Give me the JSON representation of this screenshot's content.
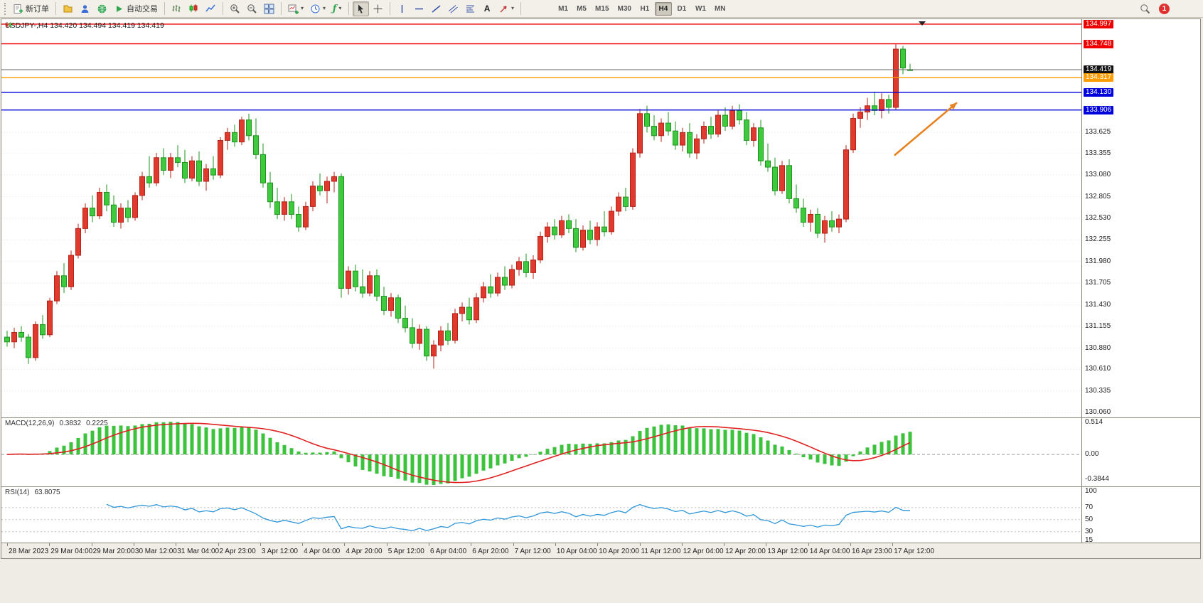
{
  "toolbar": {
    "new_order_label": "新订单",
    "autotrade_label": "自动交易",
    "text_tool_label": "A",
    "indicators_glyph": "ƒ",
    "caret_glyph": "▾",
    "timeframes": [
      "M1",
      "M5",
      "M15",
      "M30",
      "H1",
      "H4",
      "D1",
      "W1",
      "MN"
    ],
    "active_timeframe": "H4",
    "notification_count": "1"
  },
  "chart": {
    "title": "USDJPY-,H4 134.420 134.494 134.419 134.419"
  },
  "indicators": {
    "macd": {
      "name": "MACD(12,26,9)",
      "value_main": "0.3832",
      "value_signal": "0.2225",
      "scale": [
        "0.514",
        "0.00",
        "-0.3844"
      ],
      "range": [
        -0.5,
        0.57
      ],
      "histogram_color": "#3CC23C",
      "signal_color": "#E02020"
    },
    "rsi": {
      "name": "RSI(14)",
      "value": "63.8075",
      "levels": [
        "100",
        "70",
        "50",
        "30",
        "15"
      ],
      "level_lines": [
        70,
        50,
        30
      ],
      "range": [
        12,
        104
      ],
      "line_color": "#2E96D8"
    }
  },
  "chart_data": {
    "type": "candlestick",
    "symbol": "USDJPY-",
    "period": "H4",
    "current_price": "134.419",
    "price_axis": {
      "min": 130.0,
      "max": 135.06,
      "grid_step": 0.275,
      "labels": [
        "133.625",
        "133.355",
        "133.080",
        "132.805",
        "132.530",
        "132.255",
        "131.980",
        "131.705",
        "131.430",
        "131.155",
        "130.880",
        "130.610",
        "130.335",
        "130.060"
      ]
    },
    "hlines": [
      {
        "price": 134.997,
        "label": "134.997",
        "color": "#EF0000",
        "badge": "#EF0000"
      },
      {
        "price": 134.748,
        "label": "134.748",
        "color": "#EF0000",
        "badge": "#EF0000"
      },
      {
        "price": 134.419,
        "label": "134.419",
        "color": "#666666",
        "badge": "#111111",
        "current": true
      },
      {
        "price": 134.317,
        "label": "134.317",
        "color": "#FF9C00",
        "badge": "#FF9C00"
      },
      {
        "price": 134.13,
        "label": "134.130",
        "color": "#0000DD",
        "badge": "#0000DD"
      },
      {
        "price": 133.906,
        "label": "133.906",
        "color": "#0000DD",
        "badge": "#0000DD"
      }
    ],
    "colors": {
      "up": "#E0392E",
      "up_border": "#B42318",
      "down": "#3FC93F",
      "down_border": "#1E961E"
    },
    "arrow": {
      "from_bar": 124.8,
      "from_price": 133.33,
      "to_bar": 133.6,
      "to_price": 134.0,
      "color": "#E8821E"
    },
    "candles": [
      [
        131.02,
        131.1,
        130.9,
        130.96
      ],
      [
        130.96,
        131.14,
        130.88,
        131.08
      ],
      [
        131.08,
        131.16,
        130.96,
        131.02
      ],
      [
        131.02,
        131.06,
        130.68,
        130.76
      ],
      [
        130.76,
        131.22,
        130.72,
        131.18
      ],
      [
        131.18,
        131.3,
        131.0,
        131.05
      ],
      [
        131.05,
        131.52,
        131.02,
        131.48
      ],
      [
        131.48,
        131.86,
        131.44,
        131.8
      ],
      [
        131.8,
        131.96,
        131.58,
        131.66
      ],
      [
        131.66,
        132.12,
        131.62,
        132.06
      ],
      [
        132.06,
        132.46,
        132.02,
        132.4
      ],
      [
        132.4,
        132.72,
        132.34,
        132.66
      ],
      [
        132.66,
        132.82,
        132.48,
        132.56
      ],
      [
        132.56,
        132.92,
        132.52,
        132.86
      ],
      [
        132.86,
        132.96,
        132.62,
        132.7
      ],
      [
        132.7,
        132.82,
        132.42,
        132.48
      ],
      [
        132.48,
        132.72,
        132.4,
        132.66
      ],
      [
        132.66,
        132.76,
        132.48,
        132.54
      ],
      [
        132.54,
        132.86,
        132.5,
        132.82
      ],
      [
        132.82,
        133.12,
        132.76,
        133.06
      ],
      [
        133.06,
        133.32,
        132.92,
        132.98
      ],
      [
        132.98,
        133.36,
        132.94,
        133.3
      ],
      [
        133.3,
        133.42,
        133.08,
        133.14
      ],
      [
        133.14,
        133.36,
        133.04,
        133.3
      ],
      [
        133.3,
        133.46,
        133.18,
        133.24
      ],
      [
        133.24,
        133.4,
        132.98,
        133.04
      ],
      [
        133.04,
        133.32,
        133.0,
        133.26
      ],
      [
        133.26,
        133.38,
        132.94,
        133.0
      ],
      [
        133.0,
        133.22,
        132.88,
        133.16
      ],
      [
        133.16,
        133.32,
        133.02,
        133.08
      ],
      [
        133.08,
        133.56,
        133.04,
        133.52
      ],
      [
        133.52,
        133.68,
        133.4,
        133.62
      ],
      [
        133.62,
        133.72,
        133.44,
        133.5
      ],
      [
        133.5,
        133.82,
        133.46,
        133.78
      ],
      [
        133.78,
        133.86,
        133.52,
        133.58
      ],
      [
        133.58,
        133.8,
        133.28,
        133.34
      ],
      [
        133.34,
        133.48,
        132.92,
        132.98
      ],
      [
        132.98,
        133.12,
        132.66,
        132.74
      ],
      [
        132.74,
        132.92,
        132.52,
        132.58
      ],
      [
        132.58,
        132.8,
        132.5,
        132.74
      ],
      [
        132.74,
        132.84,
        132.52,
        132.58
      ],
      [
        132.58,
        132.68,
        132.36,
        132.42
      ],
      [
        132.42,
        132.74,
        132.38,
        132.68
      ],
      [
        132.68,
        133.0,
        132.62,
        132.94
      ],
      [
        132.94,
        133.1,
        132.82,
        132.88
      ],
      [
        132.88,
        133.06,
        132.72,
        133.0
      ],
      [
        133.0,
        133.12,
        132.86,
        133.06
      ],
      [
        133.06,
        133.1,
        131.52,
        131.64
      ],
      [
        131.64,
        131.92,
        131.56,
        131.86
      ],
      [
        131.86,
        131.94,
        131.6,
        131.66
      ],
      [
        131.66,
        131.88,
        131.52,
        131.58
      ],
      [
        131.58,
        131.86,
        131.54,
        131.8
      ],
      [
        131.8,
        131.88,
        131.48,
        131.54
      ],
      [
        131.54,
        131.66,
        131.3,
        131.36
      ],
      [
        131.36,
        131.58,
        131.28,
        131.52
      ],
      [
        131.52,
        131.56,
        131.2,
        131.26
      ],
      [
        131.26,
        131.42,
        131.08,
        131.14
      ],
      [
        131.14,
        131.26,
        130.88,
        130.94
      ],
      [
        130.94,
        131.18,
        130.86,
        131.12
      ],
      [
        131.12,
        131.16,
        130.72,
        130.78
      ],
      [
        130.78,
        130.98,
        130.62,
        130.92
      ],
      [
        130.92,
        131.16,
        130.84,
        131.1
      ],
      [
        131.1,
        131.2,
        130.92,
        130.98
      ],
      [
        130.98,
        131.38,
        130.94,
        131.32
      ],
      [
        131.32,
        131.46,
        131.22,
        131.4
      ],
      [
        131.4,
        131.52,
        131.18,
        131.24
      ],
      [
        131.24,
        131.58,
        131.2,
        131.52
      ],
      [
        131.52,
        131.72,
        131.46,
        131.66
      ],
      [
        131.66,
        131.82,
        131.52,
        131.58
      ],
      [
        131.58,
        131.84,
        131.54,
        131.78
      ],
      [
        131.78,
        131.92,
        131.62,
        131.68
      ],
      [
        131.68,
        131.94,
        131.64,
        131.88
      ],
      [
        131.88,
        132.04,
        131.8,
        131.98
      ],
      [
        131.98,
        132.08,
        131.78,
        131.84
      ],
      [
        131.84,
        132.06,
        131.76,
        132.0
      ],
      [
        132.0,
        132.36,
        131.96,
        132.3
      ],
      [
        132.3,
        132.48,
        132.22,
        132.42
      ],
      [
        132.42,
        132.52,
        132.26,
        132.32
      ],
      [
        132.32,
        132.56,
        132.28,
        132.5
      ],
      [
        132.5,
        132.58,
        132.34,
        132.4
      ],
      [
        132.4,
        132.52,
        132.1,
        132.16
      ],
      [
        132.16,
        132.44,
        132.12,
        132.38
      ],
      [
        132.38,
        132.5,
        132.2,
        132.26
      ],
      [
        132.26,
        132.48,
        132.18,
        132.42
      ],
      [
        132.42,
        132.62,
        132.3,
        132.36
      ],
      [
        132.36,
        132.68,
        132.32,
        132.62
      ],
      [
        132.62,
        132.86,
        132.56,
        132.8
      ],
      [
        132.8,
        132.92,
        132.62,
        132.68
      ],
      [
        132.68,
        133.42,
        132.64,
        133.36
      ],
      [
        133.36,
        133.92,
        133.3,
        133.86
      ],
      [
        133.86,
        133.96,
        133.62,
        133.7
      ],
      [
        133.7,
        133.84,
        133.52,
        133.58
      ],
      [
        133.58,
        133.8,
        133.5,
        133.74
      ],
      [
        133.74,
        133.88,
        133.58,
        133.64
      ],
      [
        133.64,
        133.76,
        133.4,
        133.46
      ],
      [
        133.46,
        133.68,
        133.38,
        133.62
      ],
      [
        133.62,
        133.74,
        133.3,
        133.36
      ],
      [
        133.36,
        133.6,
        133.28,
        133.54
      ],
      [
        133.54,
        133.76,
        133.48,
        133.7
      ],
      [
        133.7,
        133.82,
        133.54,
        133.6
      ],
      [
        133.6,
        133.9,
        133.56,
        133.84
      ],
      [
        133.84,
        133.94,
        133.64,
        133.7
      ],
      [
        133.7,
        133.96,
        133.66,
        133.9
      ],
      [
        133.9,
        133.98,
        133.72,
        133.78
      ],
      [
        133.78,
        133.88,
        133.46,
        133.52
      ],
      [
        133.52,
        133.74,
        133.44,
        133.68
      ],
      [
        133.68,
        133.78,
        133.2,
        133.26
      ],
      [
        133.26,
        133.48,
        133.12,
        133.18
      ],
      [
        133.18,
        133.3,
        132.82,
        132.88
      ],
      [
        132.88,
        133.26,
        132.84,
        133.2
      ],
      [
        133.2,
        133.28,
        132.72,
        132.78
      ],
      [
        132.78,
        132.96,
        132.6,
        132.66
      ],
      [
        132.66,
        132.78,
        132.42,
        132.48
      ],
      [
        132.48,
        132.64,
        132.36,
        132.58
      ],
      [
        132.58,
        132.66,
        132.28,
        132.34
      ],
      [
        132.34,
        132.56,
        132.22,
        132.5
      ],
      [
        132.5,
        132.62,
        132.36,
        132.42
      ],
      [
        132.42,
        132.58,
        132.34,
        132.52
      ],
      [
        132.52,
        133.46,
        132.48,
        133.4
      ],
      [
        133.4,
        133.86,
        133.36,
        133.8
      ],
      [
        133.8,
        133.94,
        133.68,
        133.88
      ],
      [
        133.88,
        134.06,
        133.78,
        133.96
      ],
      [
        133.96,
        134.14,
        133.84,
        133.9
      ],
      [
        133.9,
        134.12,
        133.8,
        134.04
      ],
      [
        134.04,
        134.1,
        133.86,
        133.94
      ],
      [
        133.94,
        134.75,
        133.9,
        134.68
      ],
      [
        134.68,
        134.72,
        134.36,
        134.44
      ],
      [
        134.42,
        134.494,
        134.419,
        134.419
      ]
    ],
    "time_labels": [
      "28 Mar 2023",
      "29 Mar 04:00",
      "29 Mar 20:00",
      "30 Mar 12:00",
      "31 Mar 04:00",
      "2 Apr 23:00",
      "3 Apr 12:00",
      "4 Apr 04:00",
      "4 Apr 20:00",
      "5 Apr 12:00",
      "6 Apr 04:00",
      "6 Apr 20:00",
      "7 Apr 12:00",
      "10 Apr 04:00",
      "10 Apr 20:00",
      "11 Apr 12:00",
      "12 Apr 04:00",
      "12 Apr 20:00",
      "13 Apr 12:00",
      "14 Apr 04:00",
      "16 Apr 23:00",
      "17 Apr 12:00"
    ]
  }
}
